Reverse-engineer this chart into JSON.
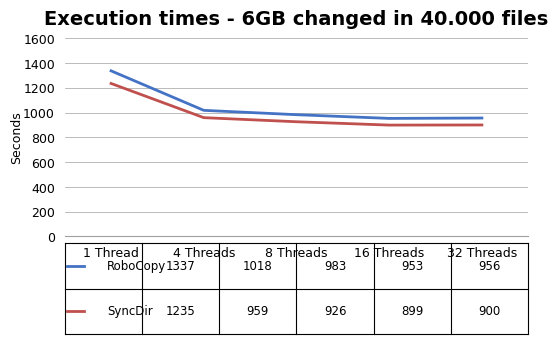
{
  "title": "Execution times - 6GB changed in 40.000 files",
  "xlabel": "",
  "ylabel": "Seconds",
  "categories": [
    "1 Thread",
    "4 Threads",
    "8 Threads",
    "16 Threads",
    "32 Threads"
  ],
  "series": [
    {
      "name": "RoboCopy",
      "values": [
        1337,
        1018,
        983,
        953,
        956
      ],
      "color": "#4472C4",
      "linewidth": 2.0
    },
    {
      "name": "SyncDir",
      "values": [
        1235,
        959,
        926,
        899,
        900
      ],
      "color": "#C0504D",
      "linewidth": 2.0
    }
  ],
  "ylim": [
    0,
    1600
  ],
  "yticks": [
    0,
    200,
    400,
    600,
    800,
    1000,
    1200,
    1400,
    1600
  ],
  "table_rows": [
    [
      "RoboCopy",
      "1337",
      "1018",
      "983",
      "953",
      "956"
    ],
    [
      "SyncDir",
      "1235",
      "959",
      "926",
      "899",
      "900"
    ]
  ],
  "table_row_colors": [
    "#4472C4",
    "#C0504D"
  ],
  "background_color": "#FFFFFF",
  "grid_color": "#A0A0A0",
  "title_fontsize": 14,
  "axis_label_fontsize": 9,
  "tick_fontsize": 9
}
